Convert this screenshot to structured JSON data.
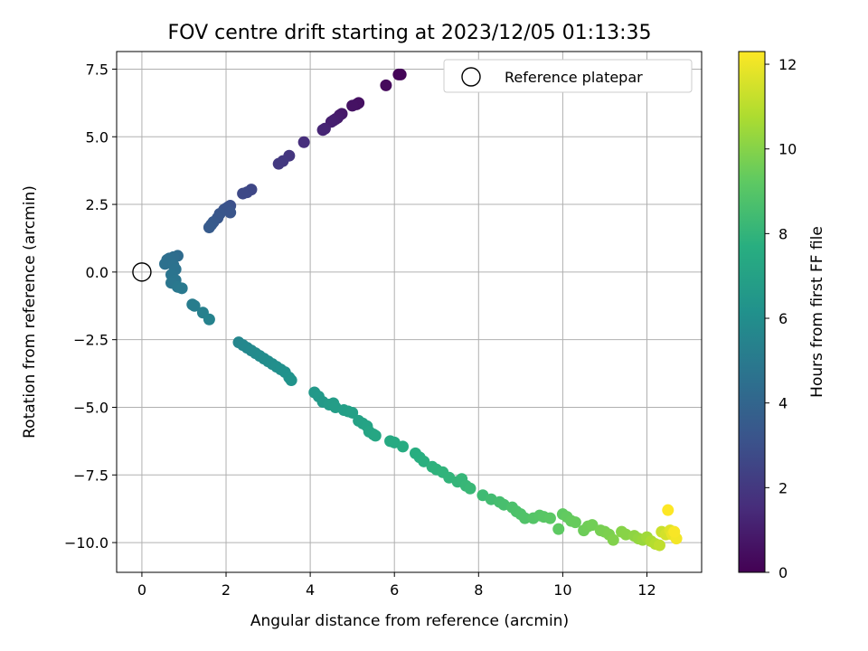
{
  "chart_data": {
    "type": "scatter",
    "title": "FOV centre drift starting at 2023/12/05 01:13:35",
    "xlabel": "Angular distance from reference (arcmin)",
    "ylabel": "Rotation from reference (arcmin)",
    "xlim": [
      -0.6,
      13.3
    ],
    "ylim": [
      -11.1,
      8.15
    ],
    "xticks": [
      0,
      2,
      4,
      6,
      8,
      10,
      12
    ],
    "yticks": [
      -10.0,
      -7.5,
      -5.0,
      -2.5,
      0.0,
      2.5,
      5.0,
      7.5
    ],
    "xtick_labels": [
      "0",
      "2",
      "4",
      "6",
      "8",
      "10",
      "12"
    ],
    "ytick_labels": [
      "−10.0",
      "−7.5",
      "−5.0",
      "−2.5",
      "0.0",
      "2.5",
      "5.0",
      "7.5"
    ],
    "grid": true,
    "legend": {
      "position": "top-right",
      "entries": [
        {
          "label": "Reference platepar",
          "marker": "open-circle",
          "color": "#000000"
        }
      ]
    },
    "colorbar": {
      "label": "Hours from first FF file",
      "colormap": "viridis",
      "range": [
        0,
        12.3
      ],
      "ticks": [
        0,
        2,
        4,
        6,
        8,
        10,
        12
      ],
      "tick_labels": [
        "0",
        "2",
        "4",
        "6",
        "8",
        "10",
        "12"
      ]
    },
    "reference_point": {
      "x": 0,
      "y": 0
    },
    "series": [
      {
        "points": [
          [
            6.1,
            7.3,
            0.1
          ],
          [
            6.15,
            7.3,
            0.15
          ],
          [
            5.8,
            6.9,
            0.3
          ],
          [
            5.15,
            6.25,
            0.5
          ],
          [
            5.1,
            6.2,
            0.55
          ],
          [
            5.0,
            6.15,
            0.6
          ],
          [
            4.75,
            5.85,
            0.8
          ],
          [
            4.7,
            5.8,
            0.85
          ],
          [
            4.65,
            5.7,
            0.9
          ],
          [
            4.6,
            5.65,
            0.95
          ],
          [
            4.55,
            5.6,
            1.0
          ],
          [
            4.5,
            5.55,
            1.05
          ],
          [
            4.35,
            5.3,
            1.2
          ],
          [
            4.3,
            5.25,
            1.25
          ],
          [
            3.85,
            4.8,
            1.6
          ],
          [
            3.5,
            4.3,
            1.9
          ],
          [
            3.35,
            4.1,
            2.0
          ],
          [
            3.25,
            4.0,
            2.05
          ],
          [
            2.6,
            3.05,
            2.6
          ],
          [
            2.5,
            2.95,
            2.65
          ],
          [
            2.4,
            2.9,
            2.7
          ],
          [
            2.1,
            2.45,
            3.0
          ],
          [
            2.05,
            2.4,
            3.05
          ],
          [
            2.0,
            2.35,
            3.1
          ],
          [
            1.95,
            2.3,
            3.15
          ],
          [
            2.1,
            2.2,
            3.2
          ],
          [
            1.85,
            2.15,
            3.25
          ],
          [
            1.8,
            2.0,
            3.3
          ],
          [
            1.7,
            1.85,
            3.4
          ],
          [
            1.65,
            1.75,
            3.45
          ],
          [
            1.6,
            1.65,
            3.5
          ],
          [
            0.85,
            0.6,
            4.3
          ],
          [
            0.75,
            0.55,
            4.35
          ],
          [
            0.65,
            0.5,
            4.4
          ],
          [
            0.6,
            0.45,
            4.45
          ],
          [
            0.55,
            0.3,
            4.5
          ],
          [
            0.75,
            0.25,
            4.55
          ],
          [
            0.8,
            0.1,
            4.6
          ],
          [
            0.7,
            -0.1,
            4.7
          ],
          [
            0.8,
            -0.3,
            4.75
          ],
          [
            0.7,
            -0.4,
            4.8
          ],
          [
            0.85,
            -0.55,
            4.9
          ],
          [
            0.95,
            -0.6,
            4.95
          ],
          [
            1.2,
            -1.2,
            5.1
          ],
          [
            1.25,
            -1.25,
            5.15
          ],
          [
            1.45,
            -1.5,
            5.3
          ],
          [
            1.6,
            -1.75,
            5.4
          ],
          [
            2.3,
            -2.6,
            5.6
          ],
          [
            2.4,
            -2.7,
            5.65
          ],
          [
            2.5,
            -2.8,
            5.7
          ],
          [
            2.6,
            -2.9,
            5.75
          ],
          [
            2.7,
            -3.0,
            5.8
          ],
          [
            2.8,
            -3.1,
            5.85
          ],
          [
            2.9,
            -3.2,
            5.9
          ],
          [
            3.0,
            -3.3,
            5.95
          ],
          [
            3.1,
            -3.4,
            6.0
          ],
          [
            3.2,
            -3.5,
            6.05
          ],
          [
            3.3,
            -3.6,
            6.1
          ],
          [
            3.4,
            -3.7,
            6.15
          ],
          [
            3.5,
            -3.9,
            6.2
          ],
          [
            3.55,
            -4.0,
            6.25
          ],
          [
            4.1,
            -4.45,
            6.5
          ],
          [
            4.2,
            -4.6,
            6.55
          ],
          [
            4.3,
            -4.8,
            6.6
          ],
          [
            4.45,
            -4.9,
            6.7
          ],
          [
            4.55,
            -4.85,
            6.75
          ],
          [
            4.6,
            -5.0,
            6.8
          ],
          [
            4.8,
            -5.1,
            6.85
          ],
          [
            4.9,
            -5.15,
            6.9
          ],
          [
            5.0,
            -5.2,
            6.95
          ],
          [
            5.15,
            -5.5,
            7.0
          ],
          [
            5.25,
            -5.6,
            7.05
          ],
          [
            5.35,
            -5.7,
            7.1
          ],
          [
            5.4,
            -5.9,
            7.15
          ],
          [
            5.5,
            -6.0,
            7.2
          ],
          [
            5.55,
            -6.05,
            7.25
          ],
          [
            5.9,
            -6.25,
            7.4
          ],
          [
            6.0,
            -6.3,
            7.45
          ],
          [
            6.2,
            -6.45,
            7.55
          ],
          [
            6.5,
            -6.7,
            7.65
          ],
          [
            6.6,
            -6.85,
            7.7
          ],
          [
            6.7,
            -7.0,
            7.75
          ],
          [
            6.9,
            -7.2,
            7.85
          ],
          [
            7.0,
            -7.3,
            7.9
          ],
          [
            7.15,
            -7.4,
            7.95
          ],
          [
            7.3,
            -7.6,
            8.0
          ],
          [
            7.5,
            -7.75,
            8.05
          ],
          [
            7.6,
            -7.65,
            8.1
          ],
          [
            7.7,
            -7.9,
            8.15
          ],
          [
            7.8,
            -8.0,
            8.2
          ],
          [
            8.1,
            -8.25,
            8.35
          ],
          [
            8.3,
            -8.4,
            8.45
          ],
          [
            8.5,
            -8.5,
            8.55
          ],
          [
            8.6,
            -8.6,
            8.6
          ],
          [
            8.8,
            -8.7,
            8.7
          ],
          [
            8.9,
            -8.85,
            8.75
          ],
          [
            9.0,
            -8.95,
            8.8
          ],
          [
            9.1,
            -9.1,
            8.85
          ],
          [
            9.3,
            -9.1,
            8.95
          ],
          [
            9.45,
            -9.0,
            9.0
          ],
          [
            9.55,
            -9.05,
            9.05
          ],
          [
            9.7,
            -9.1,
            9.1
          ],
          [
            9.9,
            -9.5,
            9.2
          ],
          [
            10.0,
            -8.95,
            9.25
          ],
          [
            10.1,
            -9.05,
            9.3
          ],
          [
            10.2,
            -9.2,
            9.35
          ],
          [
            10.3,
            -9.25,
            9.4
          ],
          [
            10.5,
            -9.55,
            9.5
          ],
          [
            10.6,
            -9.4,
            9.55
          ],
          [
            10.7,
            -9.35,
            9.6
          ],
          [
            10.9,
            -9.55,
            9.7
          ],
          [
            11.0,
            -9.6,
            9.75
          ],
          [
            11.1,
            -9.7,
            9.8
          ],
          [
            11.2,
            -9.9,
            9.9
          ],
          [
            11.4,
            -9.6,
            10.0
          ],
          [
            11.5,
            -9.7,
            10.05
          ],
          [
            11.7,
            -9.75,
            10.15
          ],
          [
            11.8,
            -9.85,
            10.25
          ],
          [
            11.9,
            -9.9,
            10.35
          ],
          [
            12.0,
            -9.8,
            10.5
          ],
          [
            12.1,
            -9.95,
            10.7
          ],
          [
            12.2,
            -10.05,
            10.9
          ],
          [
            12.3,
            -10.1,
            11.1
          ],
          [
            12.35,
            -9.6,
            11.3
          ],
          [
            12.45,
            -9.7,
            11.5
          ],
          [
            12.55,
            -9.55,
            11.7
          ],
          [
            12.6,
            -9.7,
            11.9
          ],
          [
            12.7,
            -9.85,
            12.1
          ],
          [
            12.5,
            -8.8,
            12.3
          ],
          [
            12.65,
            -9.6,
            12.2
          ]
        ]
      }
    ]
  }
}
